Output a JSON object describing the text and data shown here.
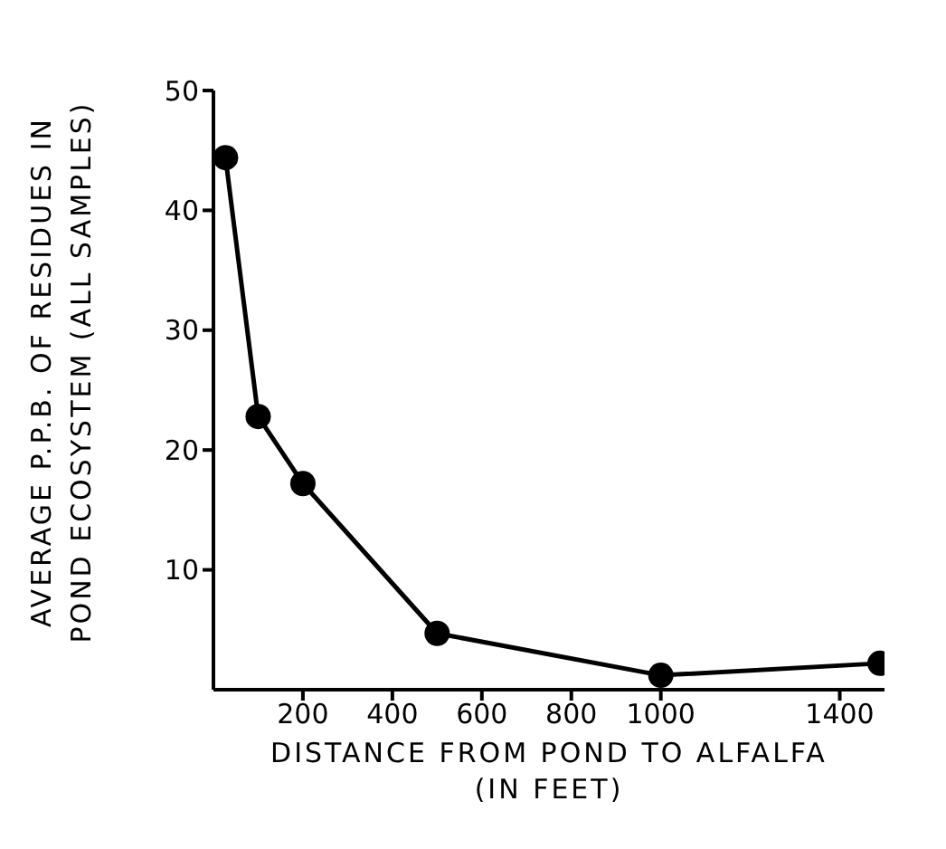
{
  "chart_data": {
    "type": "line",
    "xlabel": "DISTANCE FROM POND TO ALFALFA\n(IN FEET)",
    "ylabel": "AVERAGE P.P.B. OF RESIDUES IN\nPOND ECOSYSTEM (ALL SAMPLES)",
    "x": [
      27,
      100,
      200,
      500,
      1000,
      1490
    ],
    "series": [
      {
        "color": "#000000",
        "values": [
          44.4,
          22.8,
          17.2,
          4.7,
          1.2,
          2.2
        ]
      }
    ],
    "xlim": [
      0,
      1500
    ],
    "xticks": [
      200,
      400,
      600,
      800,
      1000,
      1400
    ],
    "ylim": [
      0,
      50
    ],
    "yticks": [
      10,
      20,
      30,
      40,
      50
    ],
    "grid": false,
    "legend": false,
    "marker": "circle",
    "line_style": "solid"
  }
}
